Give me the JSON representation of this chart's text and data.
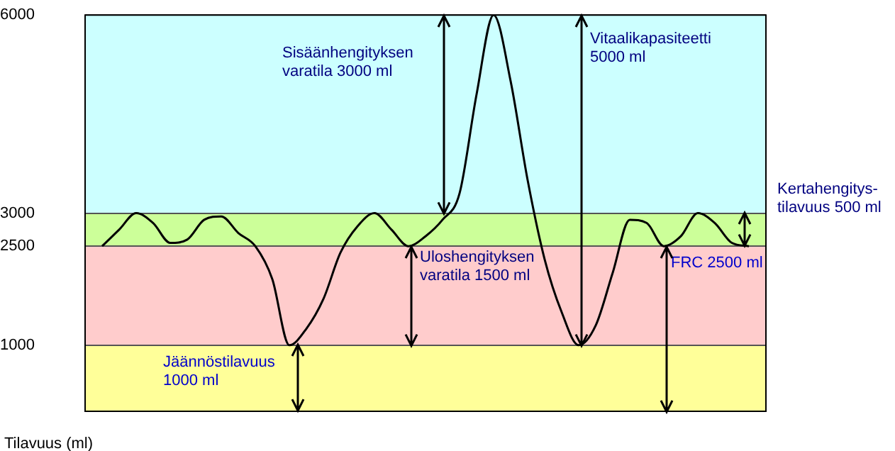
{
  "chart_data": {
    "type": "line",
    "ylabel": "Tilavuus (ml)",
    "categories": [
      null,
      null,
      null,
      null,
      null,
      null,
      null,
      null,
      null,
      null,
      null,
      null,
      null,
      null,
      null,
      null,
      null,
      null,
      null,
      null,
      null,
      null,
      null,
      null,
      null,
      null,
      null,
      null,
      null,
      null,
      null,
      null,
      null,
      null,
      null,
      null,
      null,
      null,
      null,
      null,
      null
    ],
    "series": [
      {
        "color": "#000000",
        "values": [
          null,
          2500,
          2750,
          3000,
          2850,
          2550,
          2600,
          2900,
          2950,
          2700,
          2500,
          2000,
          1000,
          1250,
          1700,
          2400,
          2800,
          3000,
          2750,
          2500,
          2650,
          2900,
          3300,
          4800,
          6000,
          5000,
          3500,
          2300,
          1500,
          1000,
          1300,
          2100,
          2900,
          2850,
          2500,
          2650,
          3000,
          2850,
          2550,
          2500,
          null
        ]
      }
    ],
    "ylim": [
      0,
      6000
    ],
    "yticks": [
      1000,
      2500,
      3000,
      6000
    ],
    "tick_labels": "y",
    "grid": "y",
    "legend": false,
    "marker": "none",
    "line_style": "solid",
    "bands": [
      {
        "axis": "y",
        "from": 0,
        "to": 1000,
        "color": "#ffff99"
      },
      {
        "axis": "y",
        "from": 1000,
        "to": 2500,
        "color": "#ffcccc"
      },
      {
        "axis": "y",
        "from": 2500,
        "to": 3000,
        "color": "#ccff99"
      },
      {
        "axis": "y",
        "from": 3000,
        "to": 6000,
        "color": "#ccffff"
      }
    ],
    "annotations": [
      "Sisäänhengityksen varatila 3000 ml",
      "Vitaalikapasiteetti 5000 ml",
      "Kertahengitys- tilavuus 500 ml",
      "Uloshengityksen varatila 1500 ml",
      "Jäännöstilavuus 1000 ml",
      "FRC 2500 ml"
    ]
  }
}
